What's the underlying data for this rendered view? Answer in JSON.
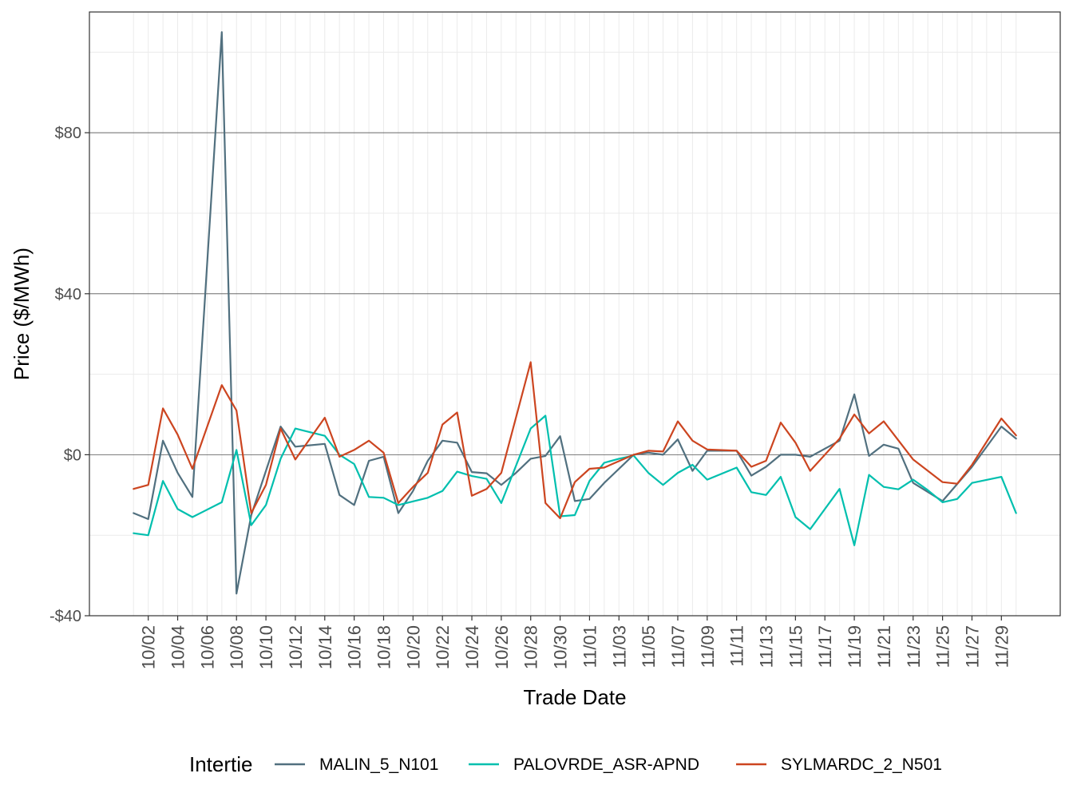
{
  "chart_data": {
    "type": "line",
    "xlabel": "Trade Date",
    "ylabel": "Price ($/MWh)",
    "ylim": [
      -40,
      110
    ],
    "y_ticks": [
      -40,
      0,
      40,
      80
    ],
    "y_tick_labels": [
      "-$40",
      "$0",
      "$40",
      "$80"
    ],
    "x_start": "2022-10-01",
    "x_end": "2022-11-30",
    "x_ticks": [
      "10/02",
      "10/04",
      "10/06",
      "10/08",
      "10/10",
      "10/12",
      "10/14",
      "10/16",
      "10/18",
      "10/20",
      "10/22",
      "10/24",
      "10/26",
      "10/28",
      "10/30",
      "11/01",
      "11/03",
      "11/05",
      "11/07",
      "11/09",
      "11/11",
      "11/13",
      "11/15",
      "11/17",
      "11/19",
      "11/21",
      "11/23",
      "11/25",
      "11/27",
      "11/29"
    ],
    "grid": true,
    "legend": {
      "title": "Intertie",
      "position": "bottom"
    },
    "series": [
      {
        "name": "MALIN_5_N101",
        "color": "#51707f",
        "points": [
          [
            "2022-10-01",
            -14.5
          ],
          [
            "2022-10-02",
            -16.0
          ],
          [
            "2022-10-03",
            3.5
          ],
          [
            "2022-10-04",
            -4.5
          ],
          [
            "2022-10-05",
            -10.5
          ],
          [
            "2022-10-07",
            105.0
          ],
          [
            "2022-10-08",
            -34.5
          ],
          [
            "2022-10-09",
            -15.0
          ],
          [
            "2022-10-10",
            -4.0
          ],
          [
            "2022-10-11",
            7.0
          ],
          [
            "2022-10-12",
            2.0
          ],
          [
            "2022-10-14",
            2.7
          ],
          [
            "2022-10-15",
            -10.0
          ],
          [
            "2022-10-16",
            -12.5
          ],
          [
            "2022-10-17",
            -1.5
          ],
          [
            "2022-10-18",
            -0.5
          ],
          [
            "2022-10-19",
            -14.5
          ],
          [
            "2022-10-20",
            -9.0
          ],
          [
            "2022-10-21",
            -1.5
          ],
          [
            "2022-10-22",
            3.5
          ],
          [
            "2022-10-23",
            3.0
          ],
          [
            "2022-10-24",
            -4.3
          ],
          [
            "2022-10-25",
            -4.6
          ],
          [
            "2022-10-26",
            -7.5
          ],
          [
            "2022-10-27",
            -4.5
          ],
          [
            "2022-10-28",
            -1.0
          ],
          [
            "2022-10-29",
            -0.3
          ],
          [
            "2022-10-30",
            4.6
          ],
          [
            "2022-10-31",
            -11.5
          ],
          [
            "2022-11-01",
            -11.0
          ],
          [
            "2022-11-02",
            -7.0
          ],
          [
            "2022-11-04",
            0.0
          ],
          [
            "2022-11-05",
            0.5
          ],
          [
            "2022-11-06",
            0.0
          ],
          [
            "2022-11-07",
            3.8
          ],
          [
            "2022-11-08",
            -4.0
          ],
          [
            "2022-11-09",
            1.0
          ],
          [
            "2022-11-11",
            1.0
          ],
          [
            "2022-11-12",
            -5.2
          ],
          [
            "2022-11-13",
            -3.0
          ],
          [
            "2022-11-14",
            0.0
          ],
          [
            "2022-11-15",
            0.0
          ],
          [
            "2022-11-16",
            -0.5
          ],
          [
            "2022-11-18",
            3.5
          ],
          [
            "2022-11-19",
            15.0
          ],
          [
            "2022-11-20",
            -0.3
          ],
          [
            "2022-11-21",
            2.5
          ],
          [
            "2022-11-22",
            1.5
          ],
          [
            "2022-11-23",
            -7.0
          ],
          [
            "2022-11-25",
            -11.5
          ],
          [
            "2022-11-27",
            -3.0
          ],
          [
            "2022-11-29",
            7.0
          ],
          [
            "2022-11-30",
            4.0
          ]
        ]
      },
      {
        "name": "PALOVRDE_ASR-APND",
        "color": "#00bfae",
        "points": [
          [
            "2022-10-01",
            -19.5
          ],
          [
            "2022-10-02",
            -20.0
          ],
          [
            "2022-10-03",
            -6.5
          ],
          [
            "2022-10-04",
            -13.5
          ],
          [
            "2022-10-05",
            -15.5
          ],
          [
            "2022-10-07",
            -11.8
          ],
          [
            "2022-10-08",
            1.2
          ],
          [
            "2022-10-09",
            -17.5
          ],
          [
            "2022-10-10",
            -12.5
          ],
          [
            "2022-10-11",
            -1.0
          ],
          [
            "2022-10-12",
            6.5
          ],
          [
            "2022-10-14",
            4.7
          ],
          [
            "2022-10-15",
            0.0
          ],
          [
            "2022-10-16",
            -2.3
          ],
          [
            "2022-10-17",
            -10.5
          ],
          [
            "2022-10-18",
            -10.7
          ],
          [
            "2022-10-19",
            -12.5
          ],
          [
            "2022-10-21",
            -10.7
          ],
          [
            "2022-10-22",
            -9.0
          ],
          [
            "2022-10-23",
            -4.2
          ],
          [
            "2022-10-24",
            -5.3
          ],
          [
            "2022-10-25",
            -6.0
          ],
          [
            "2022-10-26",
            -12.0
          ],
          [
            "2022-10-28",
            6.5
          ],
          [
            "2022-10-29",
            9.7
          ],
          [
            "2022-10-30",
            -15.3
          ],
          [
            "2022-10-31",
            -15.0
          ],
          [
            "2022-11-01",
            -6.5
          ],
          [
            "2022-11-02",
            -2.0
          ],
          [
            "2022-11-03",
            -1.0
          ],
          [
            "2022-11-04",
            -0.2
          ],
          [
            "2022-11-05",
            -4.5
          ],
          [
            "2022-11-06",
            -7.5
          ],
          [
            "2022-11-07",
            -4.5
          ],
          [
            "2022-11-08",
            -2.5
          ],
          [
            "2022-11-09",
            -6.2
          ],
          [
            "2022-11-11",
            -3.2
          ],
          [
            "2022-11-12",
            -9.3
          ],
          [
            "2022-11-13",
            -10.0
          ],
          [
            "2022-11-14",
            -5.5
          ],
          [
            "2022-11-15",
            -15.5
          ],
          [
            "2022-11-16",
            -18.5
          ],
          [
            "2022-11-18",
            -8.5
          ],
          [
            "2022-11-19",
            -22.5
          ],
          [
            "2022-11-20",
            -5.0
          ],
          [
            "2022-11-21",
            -8.0
          ],
          [
            "2022-11-22",
            -8.6
          ],
          [
            "2022-11-23",
            -6.2
          ],
          [
            "2022-11-24",
            -8.8
          ],
          [
            "2022-11-25",
            -11.8
          ],
          [
            "2022-11-26",
            -11.0
          ],
          [
            "2022-11-27",
            -7.0
          ],
          [
            "2022-11-29",
            -5.5
          ],
          [
            "2022-11-30",
            -14.5
          ]
        ]
      },
      {
        "name": "SYLMARDC_2_N501",
        "color": "#cc4520",
        "points": [
          [
            "2022-10-01",
            -8.5
          ],
          [
            "2022-10-02",
            -7.5
          ],
          [
            "2022-10-03",
            11.5
          ],
          [
            "2022-10-04",
            5.0
          ],
          [
            "2022-10-05",
            -3.5
          ],
          [
            "2022-10-07",
            17.3
          ],
          [
            "2022-10-08",
            11.0
          ],
          [
            "2022-10-09",
            -14.5
          ],
          [
            "2022-10-10",
            -7.5
          ],
          [
            "2022-10-11",
            6.5
          ],
          [
            "2022-10-12",
            -1.2
          ],
          [
            "2022-10-14",
            9.2
          ],
          [
            "2022-10-15",
            -0.5
          ],
          [
            "2022-10-16",
            1.2
          ],
          [
            "2022-10-17",
            3.5
          ],
          [
            "2022-10-18",
            0.5
          ],
          [
            "2022-10-19",
            -12.0
          ],
          [
            "2022-10-20",
            -8.0
          ],
          [
            "2022-10-21",
            -4.5
          ],
          [
            "2022-10-22",
            7.5
          ],
          [
            "2022-10-23",
            10.5
          ],
          [
            "2022-10-24",
            -10.2
          ],
          [
            "2022-10-25",
            -8.5
          ],
          [
            "2022-10-26",
            -4.5
          ],
          [
            "2022-10-28",
            23.0
          ],
          [
            "2022-10-29",
            -12.0
          ],
          [
            "2022-10-30",
            -15.8
          ],
          [
            "2022-10-31",
            -6.8
          ],
          [
            "2022-11-01",
            -3.5
          ],
          [
            "2022-11-02",
            -3.2
          ],
          [
            "2022-11-04",
            0.0
          ],
          [
            "2022-11-05",
            1.0
          ],
          [
            "2022-11-06",
            0.8
          ],
          [
            "2022-11-07",
            8.3
          ],
          [
            "2022-11-08",
            3.5
          ],
          [
            "2022-11-09",
            1.3
          ],
          [
            "2022-11-11",
            1.0
          ],
          [
            "2022-11-12",
            -3.0
          ],
          [
            "2022-11-13",
            -1.5
          ],
          [
            "2022-11-14",
            8.0
          ],
          [
            "2022-11-15",
            3.0
          ],
          [
            "2022-11-16",
            -4.0
          ],
          [
            "2022-11-18",
            4.0
          ],
          [
            "2022-11-19",
            10.0
          ],
          [
            "2022-11-20",
            5.3
          ],
          [
            "2022-11-21",
            8.3
          ],
          [
            "2022-11-23",
            -1.2
          ],
          [
            "2022-11-25",
            -6.8
          ],
          [
            "2022-11-26",
            -7.2
          ],
          [
            "2022-11-27",
            -2.5
          ],
          [
            "2022-11-29",
            9.0
          ],
          [
            "2022-11-30",
            4.8
          ]
        ]
      }
    ]
  }
}
